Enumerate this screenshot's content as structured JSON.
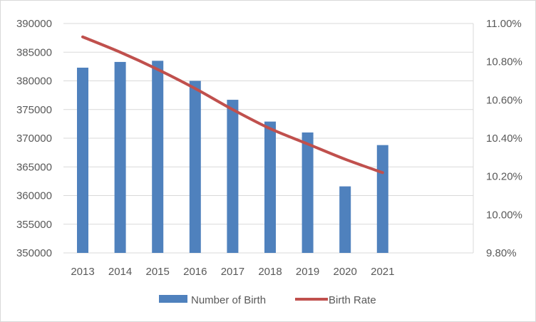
{
  "chart_data": {
    "type": "bar",
    "categories": [
      "2013",
      "2014",
      "2015",
      "2016",
      "2017",
      "2018",
      "2019",
      "2020",
      "2021"
    ],
    "series": [
      {
        "name": "Number of Birth",
        "kind": "bar",
        "axis": "left",
        "color": "#4f81bd",
        "values": [
          382300,
          383300,
          383500,
          380000,
          376700,
          372900,
          371000,
          361600,
          368800
        ]
      },
      {
        "name": "Birth Rate",
        "kind": "line",
        "axis": "right",
        "color": "#c0504d",
        "values": [
          10.93,
          10.85,
          10.76,
          10.66,
          10.55,
          10.45,
          10.37,
          10.29,
          10.22
        ]
      }
    ],
    "y_left": {
      "ylim": [
        350000,
        390000
      ],
      "ticks": [
        "390000",
        "385000",
        "380000",
        "375000",
        "370000",
        "365000",
        "360000",
        "355000",
        "350000"
      ]
    },
    "y_right": {
      "ylim": [
        9.8,
        11.0
      ],
      "ticks": [
        "11.00%",
        "10.80%",
        "10.60%",
        "10.40%",
        "10.20%",
        "10.00%",
        "9.80%"
      ]
    },
    "grid": true,
    "legend_position": "bottom",
    "title": "",
    "xlabel": "",
    "ylabel": ""
  }
}
